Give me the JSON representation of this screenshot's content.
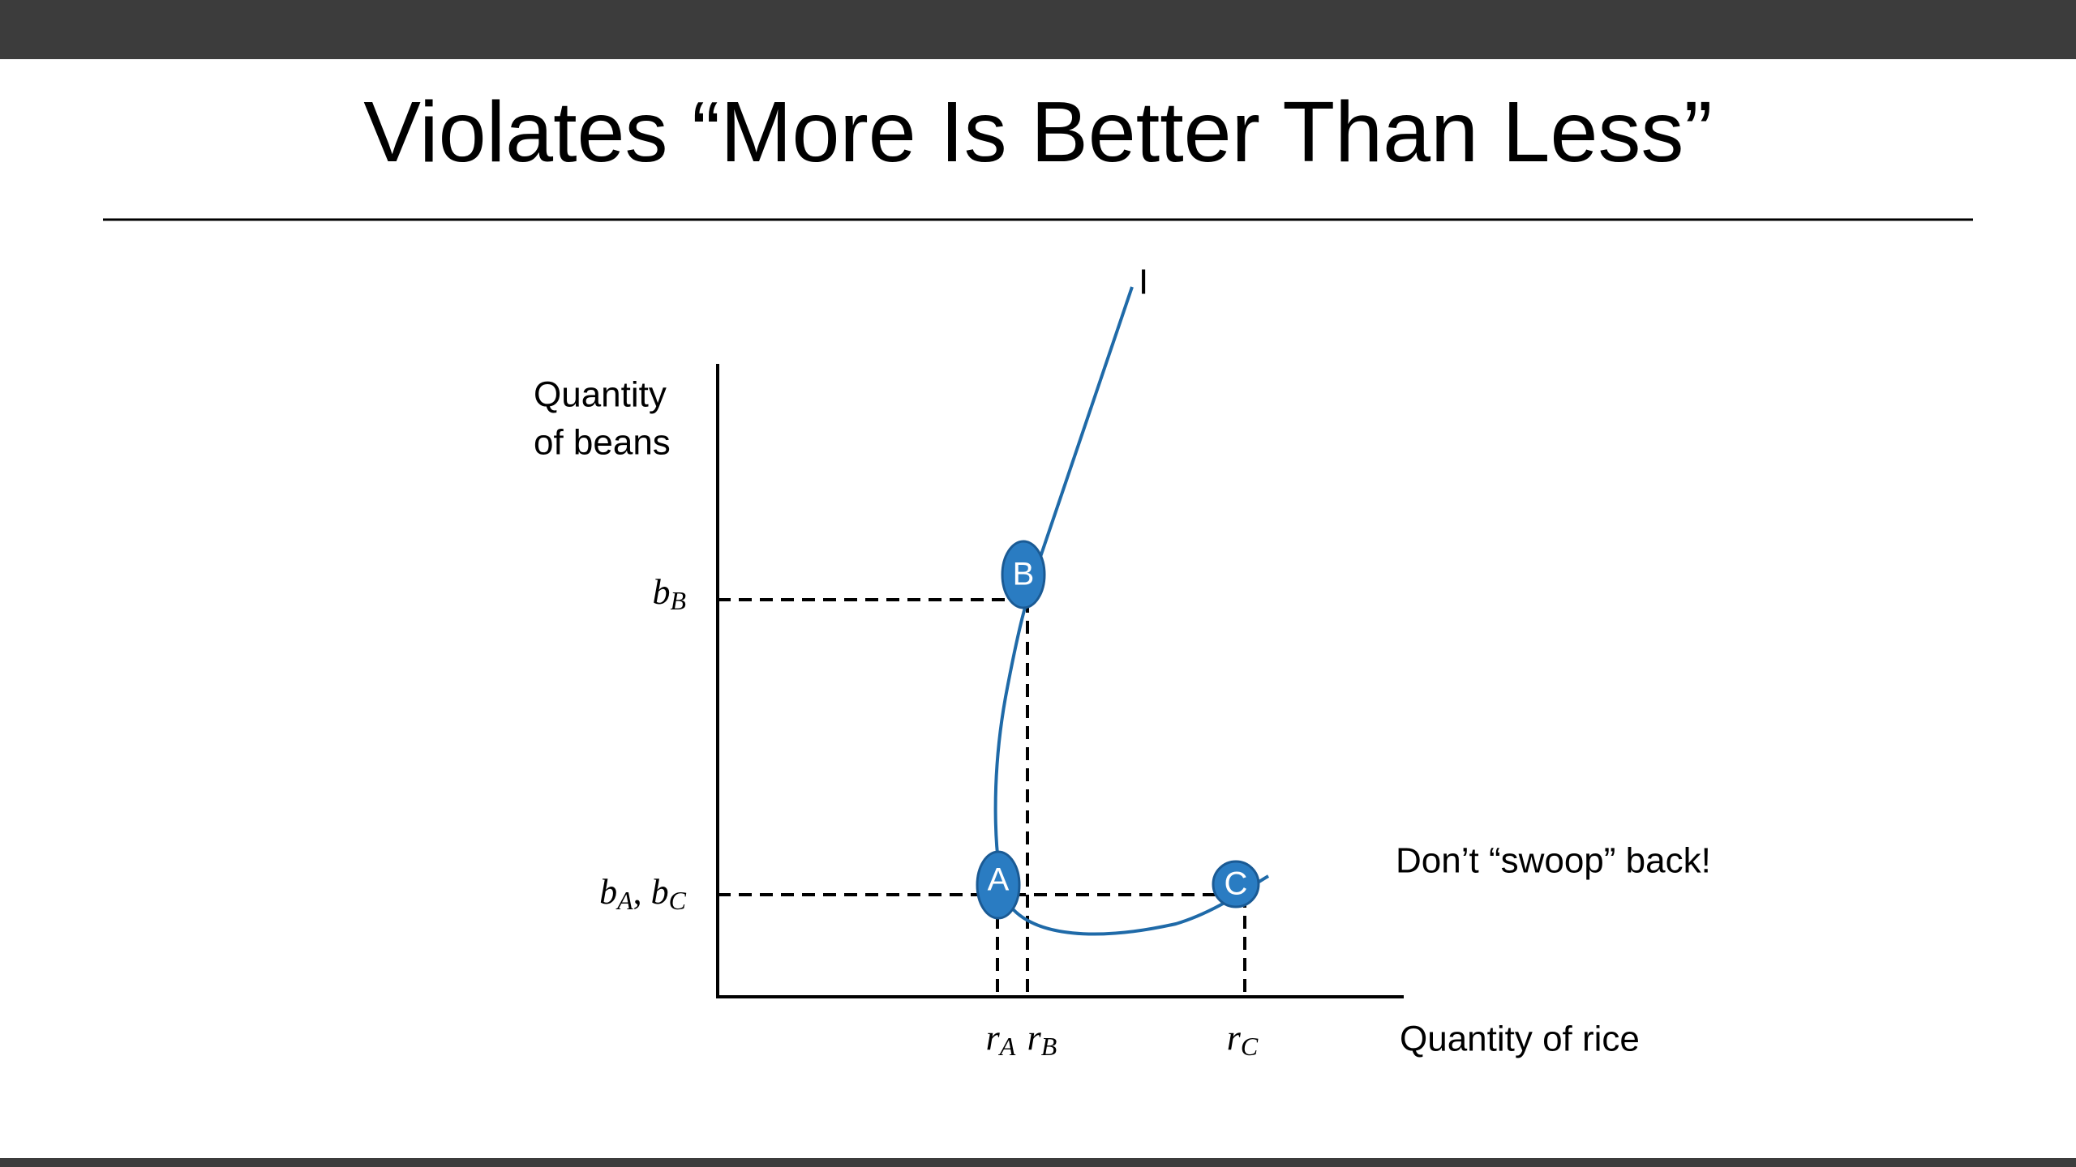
{
  "title": "Violates “More Is Better Than Less”",
  "y_axis_label": [
    "Quantity",
    "of beans"
  ],
  "x_axis_label": "Quantity of rice",
  "curve_label": "I",
  "points": [
    "B",
    "A",
    "C"
  ],
  "y_ticks": [
    [
      {
        "base": "b",
        "sub": "B"
      }
    ],
    [
      {
        "base": "b",
        "sub": "A"
      },
      {
        "text": ", "
      },
      {
        "base": "b",
        "sub": "C"
      }
    ]
  ],
  "x_ticks": [
    [
      {
        "base": "r",
        "sub": "A"
      }
    ],
    [
      {
        "base": "r",
        "sub": "B"
      }
    ],
    [
      {
        "base": "r",
        "sub": "C"
      }
    ]
  ],
  "annotation": "Don’t “swoop” back!"
}
